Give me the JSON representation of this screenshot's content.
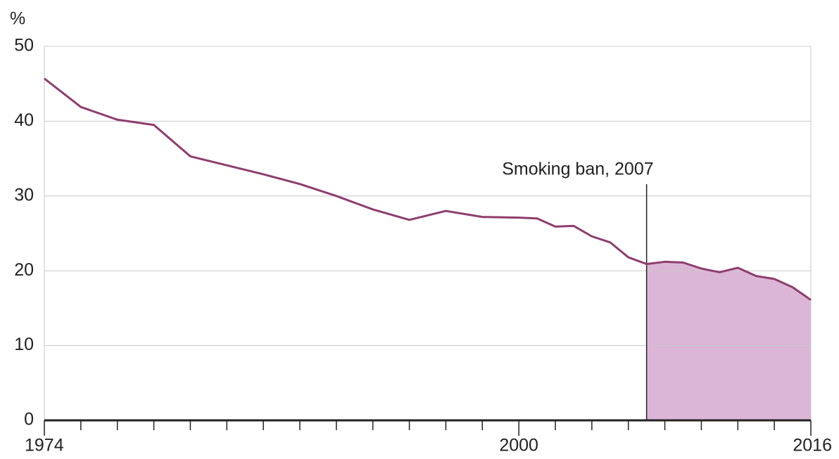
{
  "chart_data": {
    "type": "line",
    "ylabel": "%",
    "x": [
      1974,
      1976,
      1978,
      1980,
      1982,
      1984,
      1986,
      1988,
      1990,
      1992,
      1994,
      1996,
      1998,
      2000,
      2001,
      2002,
      2003,
      2004,
      2005,
      2006,
      2007,
      2008,
      2009,
      2010,
      2011,
      2012,
      2013,
      2014,
      2015,
      2016
    ],
    "series": [
      {
        "color": "#8e3d6f",
        "values": [
          45.7,
          41.9,
          40.2,
          39.5,
          35.3,
          34.1,
          32.9,
          31.6,
          30.0,
          28.2,
          26.8,
          28.0,
          27.2,
          27.1,
          27.0,
          25.9,
          26.0,
          24.6,
          23.8,
          21.8,
          20.9,
          21.2,
          21.1,
          20.3,
          19.8,
          20.4,
          19.3,
          18.9,
          17.8,
          16.1
        ]
      }
    ],
    "xlim": [
      1974,
      2016
    ],
    "xticks": [
      1974,
      2000,
      2016
    ],
    "xminorticks": [
      1976,
      1978,
      1980,
      1982,
      1984,
      1986,
      1988,
      1990,
      1992,
      1994,
      1996,
      1998,
      2002,
      2004,
      2006,
      2008,
      2010,
      2012,
      2014
    ],
    "ylim": [
      0,
      50
    ],
    "yticks": [
      0,
      10,
      20,
      30,
      40,
      50
    ],
    "grid": true,
    "annotation": {
      "text": "Smoking ban, 2007",
      "x": 2007,
      "shade_color": "#dcb6d7"
    }
  }
}
